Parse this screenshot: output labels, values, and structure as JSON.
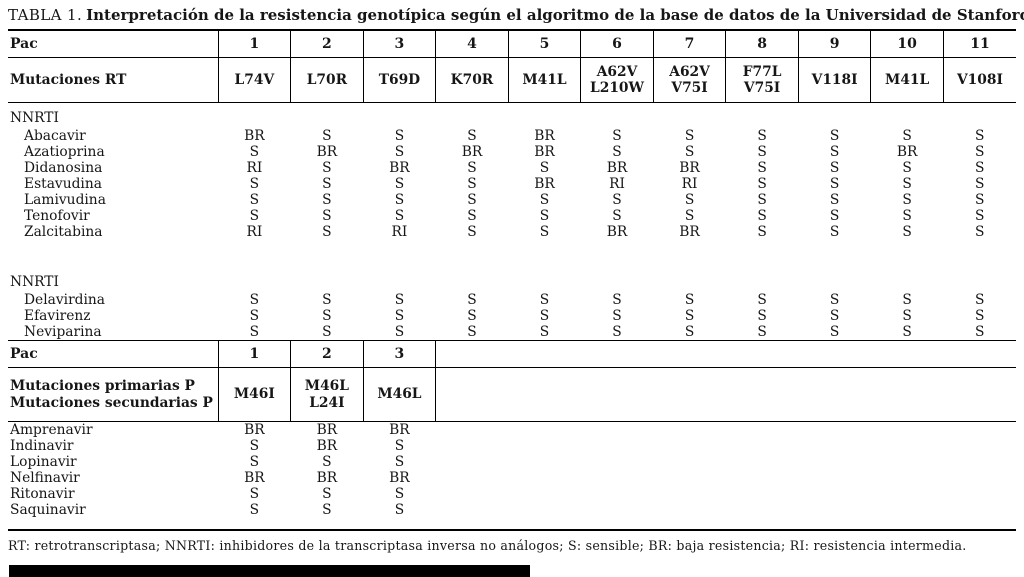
{
  "title": {
    "label": "TABLA 1.",
    "text": "Interpretación de la resistencia genotípica según el algoritmo de la base de datos de la Universidad de Stanford"
  },
  "rt_table": {
    "pac_label": "Pac",
    "pac_numbers": [
      "1",
      "2",
      "3",
      "4",
      "5",
      "6",
      "7",
      "8",
      "9",
      "10",
      "11"
    ],
    "mutations_label": "Mutaciones RT",
    "mutations": [
      [
        "L74V"
      ],
      [
        "L70R"
      ],
      [
        "T69D"
      ],
      [
        "K70R"
      ],
      [
        "M41L"
      ],
      [
        "A62V",
        "L210W"
      ],
      [
        "A62V",
        "V75I"
      ],
      [
        "F77L",
        "V75I"
      ],
      [
        "V118I"
      ],
      [
        "M41L"
      ],
      [
        "V108I"
      ]
    ],
    "sections": [
      {
        "header": "NNRTI",
        "rows": [
          {
            "drug": "Abacavir",
            "values": [
              "BR",
              "S",
              "S",
              "S",
              "BR",
              "S",
              "S",
              "S",
              "S",
              "S",
              "S"
            ]
          },
          {
            "drug": "Azatioprina",
            "values": [
              "S",
              "BR",
              "S",
              "BR",
              "BR",
              "S",
              "S",
              "S",
              "S",
              "BR",
              "S"
            ]
          },
          {
            "drug": "Didanosina",
            "values": [
              "RI",
              "S",
              "BR",
              "S",
              "S",
              "BR",
              "BR",
              "S",
              "S",
              "S",
              "S"
            ]
          },
          {
            "drug": "Estavudina",
            "values": [
              "S",
              "S",
              "S",
              "S",
              "BR",
              "RI",
              "RI",
              "S",
              "S",
              "S",
              "S"
            ]
          },
          {
            "drug": "Lamivudina",
            "values": [
              "S",
              "S",
              "S",
              "S",
              "S",
              "S",
              "S",
              "S",
              "S",
              "S",
              "S"
            ]
          },
          {
            "drug": "Tenofovir",
            "values": [
              "S",
              "S",
              "S",
              "S",
              "S",
              "S",
              "S",
              "S",
              "S",
              "S",
              "S"
            ]
          },
          {
            "drug": "Zalcitabina",
            "values": [
              "RI",
              "S",
              "RI",
              "S",
              "S",
              "BR",
              "BR",
              "S",
              "S",
              "S",
              "S"
            ]
          }
        ]
      },
      {
        "header": "NNRTI",
        "rows": [
          {
            "drug": "Delavirdina",
            "values": [
              "S",
              "S",
              "S",
              "S",
              "S",
              "S",
              "S",
              "S",
              "S",
              "S",
              "S"
            ]
          },
          {
            "drug": "Efavirenz",
            "values": [
              "S",
              "S",
              "S",
              "S",
              "S",
              "S",
              "S",
              "S",
              "S",
              "S",
              "S"
            ]
          },
          {
            "drug": "Neviparina",
            "values": [
              "S",
              "S",
              "S",
              "S",
              "S",
              "S",
              "S",
              "S",
              "S",
              "S",
              "S"
            ]
          }
        ]
      }
    ]
  },
  "protease_table": {
    "pac_label": "Pac",
    "pac_numbers": [
      "1",
      "2",
      "3"
    ],
    "mutations_labels": [
      "Mutaciones primarias P",
      "Mutaciones secundarias P"
    ],
    "mutations": [
      [
        "M46I"
      ],
      [
        "M46L",
        "L24I"
      ],
      [
        "M46L"
      ]
    ],
    "rows": [
      {
        "drug": "Amprenavir",
        "values": [
          "BR",
          "BR",
          "BR"
        ]
      },
      {
        "drug": "Indinavir",
        "values": [
          "S",
          "BR",
          "S"
        ]
      },
      {
        "drug": "Lopinavir",
        "values": [
          "S",
          "S",
          "S"
        ]
      },
      {
        "drug": "Nelfinavir",
        "values": [
          "BR",
          "BR",
          "BR"
        ]
      },
      {
        "drug": "Ritonavir",
        "values": [
          "S",
          "S",
          "S"
        ]
      },
      {
        "drug": "Saquinavir",
        "values": [
          "S",
          "S",
          "S"
        ]
      }
    ]
  },
  "footnote": "RT: retrotranscriptasa; NNRTI: inhibidores de la transcriptasa inversa no análogos; S: sensible; BR: baja resistencia; RI: resistencia intermedia."
}
